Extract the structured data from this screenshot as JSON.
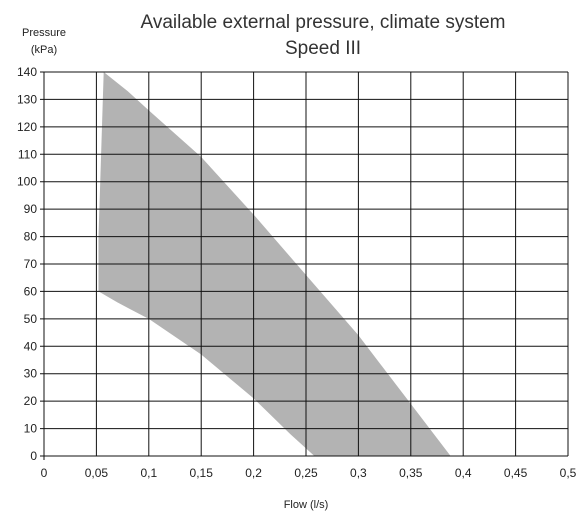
{
  "chart_data": {
    "type": "area",
    "title": "Available external pressure, climate system",
    "subtitle": "Speed III",
    "ylabel_line1": "Pressure",
    "ylabel_line2": "(kPa)",
    "xlabel": "Flow (l/s)",
    "xlim": [
      0,
      0.5
    ],
    "ylim": [
      0,
      140
    ],
    "x_ticks": [
      0,
      0.05,
      0.1,
      0.15,
      0.2,
      0.25,
      0.3,
      0.35,
      0.4,
      0.45,
      0.5
    ],
    "x_tick_labels": [
      "0",
      "0,05",
      "0,1",
      "0,15",
      "0,2",
      "0,25",
      "0,3",
      "0,35",
      "0,4",
      "0,45",
      "0,5"
    ],
    "y_ticks": [
      0,
      10,
      20,
      30,
      40,
      50,
      60,
      70,
      80,
      90,
      100,
      110,
      120,
      130,
      140
    ],
    "y_tick_labels": [
      "0",
      "10",
      "20",
      "30",
      "40",
      "50",
      "60",
      "70",
      "80",
      "90",
      "100",
      "110",
      "120",
      "130",
      "140"
    ],
    "grid": true,
    "region_color": "#b3b3b3",
    "upper_boundary": [
      {
        "x": 0.052,
        "y": 80
      },
      {
        "x": 0.057,
        "y": 140
      },
      {
        "x": 0.08,
        "y": 133
      },
      {
        "x": 0.1,
        "y": 126
      },
      {
        "x": 0.15,
        "y": 109
      },
      {
        "x": 0.2,
        "y": 88
      },
      {
        "x": 0.25,
        "y": 66
      },
      {
        "x": 0.3,
        "y": 44
      },
      {
        "x": 0.35,
        "y": 19
      },
      {
        "x": 0.388,
        "y": 0
      }
    ],
    "lower_boundary": [
      {
        "x": 0.052,
        "y": 60
      },
      {
        "x": 0.07,
        "y": 56
      },
      {
        "x": 0.1,
        "y": 50
      },
      {
        "x": 0.15,
        "y": 37
      },
      {
        "x": 0.2,
        "y": 21
      },
      {
        "x": 0.235,
        "y": 8
      },
      {
        "x": 0.258,
        "y": 0
      }
    ]
  }
}
